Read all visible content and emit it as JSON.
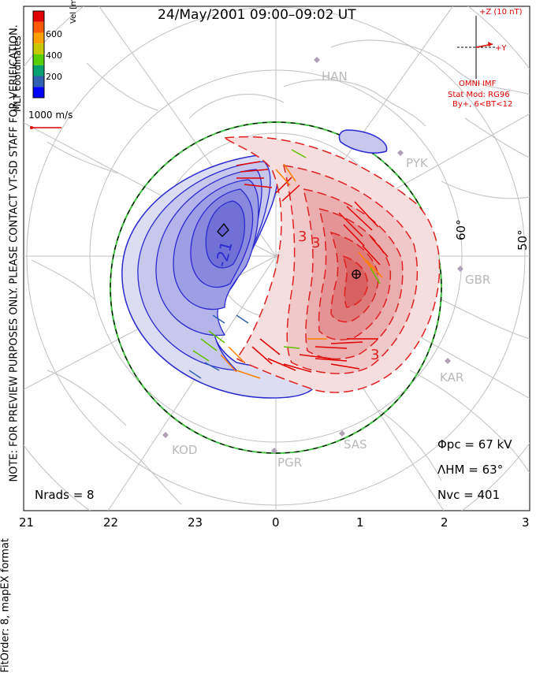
{
  "title": "24/May/2001 09:00–09:02 UT",
  "side_notes": {
    "preview": "NOTE: FOR PREVIEW PURPOSES ONLY. PLEASE CONTACT VT-SD STAFF FOR VERIFICATION.",
    "fit": "FitOrder: 8, mapEX format",
    "coords": "MLT coordinates"
  },
  "colorbar": {
    "label": "Vel [m/s]",
    "ticks": [
      "600",
      "400",
      "200"
    ],
    "colors": [
      "#e00000",
      "#ff5a00",
      "#ffa000",
      "#c8c800",
      "#58d000",
      "#00a070",
      "#3060b0",
      "#0000ff"
    ]
  },
  "vector_scale": "1000 m/s",
  "imf": {
    "z_label": "+Z (10 nT)",
    "y_label": "+Y",
    "source": "OMNI IMF",
    "stat_mod": "Stat Mod: RG96",
    "condition": "By+, 6<BT<12"
  },
  "stations": [
    "HAN",
    "PYK",
    "GBR",
    "KAR",
    "SAS",
    "PGR",
    "KOD"
  ],
  "latitude_labels": [
    "60°",
    "50°"
  ],
  "contour_labels": [
    "-21",
    "3",
    "3",
    "3"
  ],
  "stats": {
    "phi_pc_label": "Φpc",
    "phi_pc_value": "= 67 kV",
    "lambda_hm_label": "ΛHM",
    "lambda_hm_value": "= 63°",
    "n_vc_label": "Nvc",
    "n_vc_value": "= 401",
    "n_rads_label": "Nrads",
    "n_rads_value": "= 8"
  },
  "mlt_ticks": [
    "21",
    "22",
    "23",
    "0",
    "1",
    "2",
    "3"
  ],
  "colors": {
    "negative_cell": "#2a2ad0",
    "positive_cell": "#e02020",
    "boundary": "#40c040"
  }
}
